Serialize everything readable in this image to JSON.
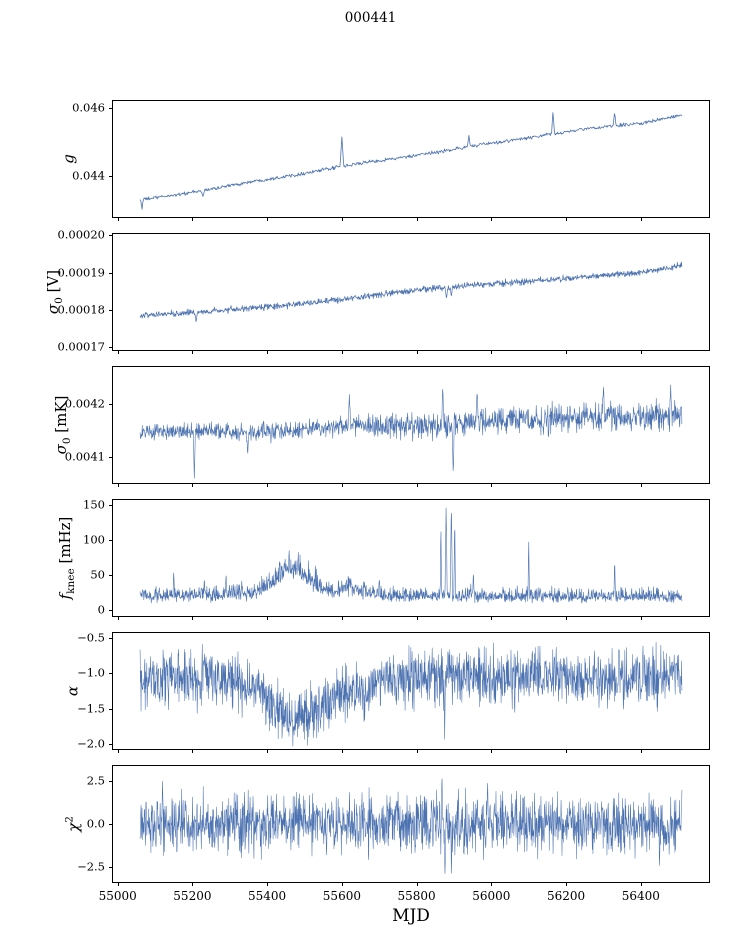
{
  "title": "000441",
  "chart_data": {
    "type": "line",
    "title": "000441",
    "xlabel": "MJD",
    "line_color": "#4c72b0",
    "xlim": [
      54987.5,
      56582.5
    ],
    "x_data_range": [
      55060,
      56510
    ],
    "x_ticks": [
      55000,
      55200,
      55400,
      55600,
      55800,
      56000,
      56200,
      56400
    ],
    "x_tick_labels": [
      "55000",
      "55200",
      "55400",
      "55600",
      "55800",
      "56000",
      "56200",
      "56400"
    ],
    "legend": "none",
    "grid": false,
    "panels": [
      {
        "id": "g",
        "ylabel": {
          "main": "g",
          "sub": "",
          "sup": "",
          "unit": ""
        },
        "ylim": [
          0.0428,
          0.0462
        ],
        "yticks": [
          {
            "v": 0.044,
            "label": "0.044"
          },
          {
            "v": 0.046,
            "label": "0.046"
          }
        ],
        "trend_x": [
          55060,
          55200,
          55350,
          55500,
          55650,
          55800,
          55950,
          56100,
          56250,
          56400,
          56510
        ],
        "trend_y": [
          0.0433,
          0.04352,
          0.04382,
          0.04408,
          0.04438,
          0.0446,
          0.04488,
          0.04512,
          0.04538,
          0.04555,
          0.04578
        ],
        "noise_x": [
          55060,
          56510
        ],
        "noise_y": [
          5e-05,
          5e-05
        ],
        "spikes": [
          {
            "x": 55065,
            "y": 0.043,
            "w": 3
          },
          {
            "x": 55228,
            "y": 0.0434,
            "w": 5
          },
          {
            "x": 55600,
            "y": 0.04515,
            "w": 5
          },
          {
            "x": 55618,
            "y": 0.0443,
            "w": 4
          },
          {
            "x": 55940,
            "y": 0.0452,
            "w": 4
          },
          {
            "x": 56165,
            "y": 0.0459,
            "w": 4
          },
          {
            "x": 56330,
            "y": 0.04588,
            "w": 4
          }
        ],
        "n": 820,
        "stroke": 0.8
      },
      {
        "id": "sigma0-v",
        "ylabel": {
          "main": "σ",
          "sub": "0",
          "sup": "",
          "unit": "[V]"
        },
        "ylim": [
          0.0001693,
          0.0002003
        ],
        "yticks": [
          {
            "v": 0.00017,
            "label": "0.00017"
          },
          {
            "v": 0.00018,
            "label": "0.00018"
          },
          {
            "v": 0.00019,
            "label": "0.00019"
          },
          {
            "v": 0.0002,
            "label": "0.00020"
          }
        ],
        "trend_x": [
          55060,
          55200,
          55350,
          55500,
          55650,
          55800,
          55950,
          56100,
          56250,
          56400,
          56510
        ],
        "trend_y": [
          0.0001785,
          0.0001793,
          0.0001803,
          0.0001817,
          0.0001835,
          0.0001853,
          0.0001866,
          0.0001877,
          0.0001888,
          0.00019,
          0.000192
        ],
        "noise_x": [
          55060,
          56510
        ],
        "noise_y": [
          8e-07,
          8e-07
        ],
        "spikes": [
          {
            "x": 55210,
            "y": 0.0001765,
            "w": 3
          },
          {
            "x": 55880,
            "y": 0.000183,
            "w": 4
          },
          {
            "x": 55893,
            "y": 0.0001835,
            "w": 3
          }
        ],
        "n": 1300,
        "stroke": 0.7
      },
      {
        "id": "sigma0-mk",
        "ylabel": {
          "main": "σ",
          "sub": "0",
          "sup": "",
          "unit": "[mK]"
        },
        "ylim": [
          0.004052,
          0.004268
        ],
        "yticks": [
          {
            "v": 0.0041,
            "label": "0.0041"
          },
          {
            "v": 0.0042,
            "label": "0.0042"
          }
        ],
        "trend_x": [
          55060,
          55200,
          55350,
          55500,
          55650,
          55800,
          55950,
          56100,
          56250,
          56400,
          56510
        ],
        "trend_y": [
          0.004146,
          0.004148,
          0.004146,
          0.004151,
          0.004158,
          0.004157,
          0.004166,
          0.00417,
          0.004174,
          0.004176,
          0.004178
        ],
        "noise_x": [
          55060,
          55580,
          55700,
          56510
        ],
        "noise_y": [
          1.5e-05,
          1.6e-05,
          2.4e-05,
          2.6e-05
        ],
        "spikes": [
          {
            "x": 55205,
            "y": 0.004058,
            "w": 3
          },
          {
            "x": 55348,
            "y": 0.004105,
            "w": 3
          },
          {
            "x": 55620,
            "y": 0.004218,
            "w": 3
          },
          {
            "x": 55870,
            "y": 0.004235,
            "w": 3
          },
          {
            "x": 55898,
            "y": 0.004062,
            "w": 3
          },
          {
            "x": 55962,
            "y": 0.004228,
            "w": 3
          },
          {
            "x": 56300,
            "y": 0.004232,
            "w": 3
          },
          {
            "x": 56480,
            "y": 0.004235,
            "w": 3
          }
        ],
        "n": 1500,
        "stroke": 0.6
      },
      {
        "id": "fknee",
        "ylabel": {
          "main": "f",
          "sub": "knee",
          "sup": "",
          "unit": "[mHz]"
        },
        "ylim": [
          -8,
          157
        ],
        "yticks": [
          {
            "v": 0,
            "label": "0"
          },
          {
            "v": 50,
            "label": "50"
          },
          {
            "v": 100,
            "label": "100"
          },
          {
            "v": 150,
            "label": "150"
          }
        ],
        "trend_x": [
          55060,
          55350,
          55400,
          55430,
          55460,
          55500,
          55540,
          55580,
          55610,
          55640,
          55680,
          55750,
          56510
        ],
        "trend_y": [
          20,
          22,
          32,
          50,
          62,
          48,
          32,
          26,
          34,
          30,
          22,
          20,
          19
        ],
        "noise_x": [
          55060,
          55380,
          55430,
          55510,
          55560,
          55620,
          55680,
          56510
        ],
        "noise_y": [
          7,
          8,
          14,
          13,
          9,
          11,
          7,
          7
        ],
        "pos_boost": 1.8,
        "clip_min": 6,
        "spikes": [
          {
            "x": 55150,
            "y": 58,
            "w": 2
          },
          {
            "x": 55232,
            "y": 46,
            "w": 2
          },
          {
            "x": 55290,
            "y": 52,
            "w": 2
          },
          {
            "x": 55332,
            "y": 42,
            "w": 2
          },
          {
            "x": 55700,
            "y": 46,
            "w": 2
          },
          {
            "x": 55865,
            "y": 125,
            "w": 2
          },
          {
            "x": 55879,
            "y": 152,
            "w": 3
          },
          {
            "x": 55893,
            "y": 155,
            "w": 3
          },
          {
            "x": 55902,
            "y": 140,
            "w": 2
          },
          {
            "x": 55952,
            "y": 56,
            "w": 2
          },
          {
            "x": 56100,
            "y": 102,
            "w": 2
          },
          {
            "x": 56330,
            "y": 76,
            "w": 2
          }
        ],
        "n": 1600,
        "stroke": 0.6
      },
      {
        "id": "alpha",
        "ylabel": {
          "main": "α",
          "sub": "",
          "sup": "",
          "unit": ""
        },
        "ylim": [
          -2.07,
          -0.43
        ],
        "yticks": [
          {
            "v": -0.5,
            "label": "−0.5"
          },
          {
            "v": -1.0,
            "label": "−1.0"
          },
          {
            "v": -1.5,
            "label": "−1.5"
          },
          {
            "v": -2.0,
            "label": "−2.0"
          }
        ],
        "trend_x": [
          55060,
          55280,
          55320,
          55360,
          55400,
          55440,
          55490,
          55540,
          55580,
          55620,
          55660,
          55700,
          55760,
          56510
        ],
        "trend_y": [
          -1.05,
          -1.07,
          -1.22,
          -1.1,
          -1.38,
          -1.55,
          -1.6,
          -1.5,
          -1.3,
          -1.18,
          -1.28,
          -1.08,
          -1.05,
          -1.05
        ],
        "noise_x": [
          55060,
          56510
        ],
        "noise_y": [
          0.38,
          0.38
        ],
        "clip_min": -2.03,
        "clip_max": -0.5,
        "spikes": [
          {
            "x": 55875,
            "y": -1.95,
            "w": 2
          },
          {
            "x": 55884,
            "y": -0.55,
            "w": 2
          }
        ],
        "n": 1700,
        "stroke": 0.55
      },
      {
        "id": "chi2",
        "ylabel": {
          "main": "χ",
          "sub": "",
          "sup": "2",
          "unit": ""
        },
        "ylim": [
          -3.35,
          3.35
        ],
        "yticks": [
          {
            "v": -2.5,
            "label": "−2.5"
          },
          {
            "v": 0.0,
            "label": "0.0"
          },
          {
            "v": 2.5,
            "label": "2.5"
          }
        ],
        "trend_x": [
          55060,
          56510
        ],
        "trend_y": [
          0,
          0
        ],
        "noise_x": [
          55060,
          56510
        ],
        "noise_y": [
          1.6,
          1.6
        ],
        "clip_min": -3.05,
        "clip_max": 3.05,
        "spikes": [
          {
            "x": 55120,
            "y": 2.6,
            "w": 2
          },
          {
            "x": 55868,
            "y": 2.9,
            "w": 2
          },
          {
            "x": 55876,
            "y": -3.0,
            "w": 3
          },
          {
            "x": 55893,
            "y": -2.9,
            "w": 2
          },
          {
            "x": 55990,
            "y": 2.75,
            "w": 2
          },
          {
            "x": 56450,
            "y": -2.8,
            "w": 2
          }
        ],
        "n": 1700,
        "stroke": 0.55
      }
    ]
  }
}
